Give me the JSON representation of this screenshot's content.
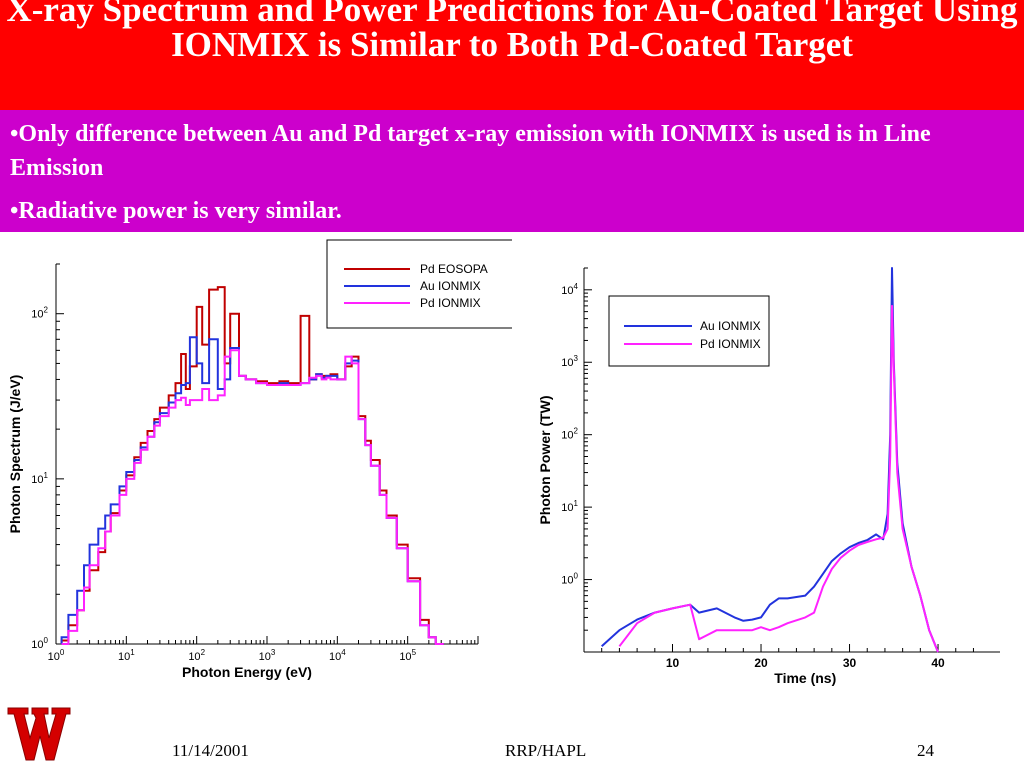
{
  "slide": {
    "title": "X-ray Spectrum and Power Predictions for Au-Coated Target Using IONMIX is Similar to Both Pd-Coated Target",
    "bullets": [
      "•Only difference between Au and Pd target x-ray emission with IONMIX is used is in Line Emission",
      "•Radiative power is very similar."
    ],
    "footer": {
      "date": "11/14/2001",
      "center": "RRP/HAPL",
      "page": "24"
    }
  },
  "colors": {
    "title_band": "#ff0000",
    "bullet_band": "#cc00cc",
    "pd_eosopa": "#c00000",
    "au_ionmix": "#2233dd",
    "pd_ionmix": "#ff22ff"
  },
  "chart_data": [
    {
      "type": "line",
      "xlabel": "Photon Energy (eV)",
      "ylabel": "Photon Spectrum (J/eV)",
      "xscale": "log",
      "yscale": "log",
      "xlim": [
        1,
        1000000
      ],
      "ylim": [
        1,
        200
      ],
      "xticks": [
        "10^0",
        "10^1",
        "10^2",
        "10^3",
        "10^4",
        "10^5"
      ],
      "yticks": [
        "10^0",
        "10^1",
        "10^2"
      ],
      "legend": "top-right",
      "series": [
        {
          "name": "Pd EOSOPA",
          "x": [
            1.2,
            1.5,
            2,
            2.5,
            3,
            4,
            5,
            6,
            8,
            10,
            13,
            16,
            20,
            25,
            30,
            40,
            50,
            60,
            70,
            80,
            100,
            120,
            150,
            200,
            250,
            300,
            400,
            500,
            700,
            1000,
            1500,
            2000,
            3000,
            4000,
            5000,
            6000,
            7000,
            8000,
            10000,
            13000,
            16000,
            20000,
            25000,
            30000,
            40000,
            50000,
            70000,
            100000,
            150000,
            200000,
            250000
          ],
          "y": [
            1.05,
            1.3,
            1.6,
            2.1,
            2.8,
            3.6,
            4.8,
            6.2,
            8.5,
            10.5,
            13.5,
            16.5,
            19.5,
            23,
            27,
            32,
            38,
            57,
            35,
            48,
            110,
            65,
            140,
            145,
            50,
            100,
            42,
            40,
            39,
            38,
            39,
            38,
            97,
            40,
            43,
            42,
            42,
            43,
            40,
            48,
            55,
            24,
            17,
            13,
            8.5,
            6,
            4,
            2.5,
            1.4,
            1.1,
            1.0
          ]
        },
        {
          "name": "Au IONMIX",
          "x": [
            1.2,
            1.5,
            2,
            2.5,
            3,
            4,
            5,
            6,
            8,
            10,
            13,
            16,
            20,
            25,
            30,
            40,
            50,
            60,
            70,
            80,
            100,
            120,
            150,
            200,
            250,
            300,
            400,
            500,
            700,
            1000,
            1500,
            2000,
            3000,
            4000,
            5000,
            6000,
            7000,
            8000,
            10000,
            13000,
            16000,
            20000,
            25000,
            30000,
            40000,
            50000,
            70000,
            100000,
            150000,
            200000,
            250000
          ],
          "y": [
            1.1,
            1.5,
            2.1,
            3.0,
            4.0,
            5.0,
            6.0,
            7.0,
            9.0,
            11,
            13,
            15.5,
            18,
            22,
            25,
            29,
            33,
            37,
            38,
            72,
            50,
            38,
            70,
            35,
            40,
            62,
            42,
            40,
            38,
            37,
            38,
            37,
            38,
            40,
            43,
            41,
            42,
            42,
            40,
            50,
            52,
            23,
            16,
            12,
            8,
            5.8,
            3.8,
            2.4,
            1.3,
            1.1,
            1.0
          ]
        },
        {
          "name": "Pd IONMIX",
          "x": [
            1.2,
            1.5,
            2,
            2.5,
            3,
            4,
            5,
            6,
            8,
            10,
            13,
            16,
            20,
            25,
            30,
            40,
            50,
            60,
            70,
            80,
            100,
            120,
            150,
            200,
            250,
            300,
            400,
            500,
            700,
            1000,
            1500,
            2000,
            3000,
            4000,
            5000,
            6000,
            7000,
            8000,
            10000,
            13000,
            16000,
            20000,
            25000,
            30000,
            40000,
            50000,
            70000,
            100000,
            150000,
            200000,
            250000
          ],
          "y": [
            1.0,
            1.2,
            1.6,
            2.2,
            3.0,
            3.8,
            4.8,
            6.0,
            8.0,
            10,
            12.5,
            15,
            18,
            21,
            24,
            27,
            30,
            31,
            28,
            30,
            30,
            35,
            30,
            32,
            55,
            60,
            42,
            40,
            38,
            37,
            37,
            37,
            38,
            41,
            42,
            40,
            41,
            40,
            40,
            55,
            50,
            23,
            16,
            12,
            8,
            5.8,
            3.8,
            2.4,
            1.3,
            1.1,
            1.0
          ]
        }
      ]
    },
    {
      "type": "line",
      "xlabel": "Time (ns)",
      "ylabel": "Photon Power (TW)",
      "yscale": "log",
      "xlim": [
        0,
        47
      ],
      "ylim": [
        0.1,
        20000
      ],
      "xticks": [
        "10",
        "20",
        "30",
        "40"
      ],
      "yticks": [
        "10^0",
        "10^1",
        "10^2",
        "10^3",
        "10^4"
      ],
      "legend": "top-right",
      "series": [
        {
          "name": "Au IONMIX",
          "x": [
            2,
            4,
            6,
            8,
            10,
            12,
            13,
            15,
            17,
            18,
            19,
            20,
            21,
            22,
            23,
            25,
            26,
            27,
            28,
            29,
            30,
            31,
            32,
            33,
            33.8,
            34.3,
            34.6,
            34.8,
            35.0,
            35.4,
            36,
            37,
            38,
            39,
            40
          ],
          "x_alt": null,
          "y": [
            0.12,
            0.2,
            0.28,
            0.35,
            0.4,
            0.45,
            0.35,
            0.4,
            0.3,
            0.27,
            0.28,
            0.3,
            0.45,
            0.55,
            0.55,
            0.6,
            0.8,
            1.2,
            1.8,
            2.3,
            2.8,
            3.2,
            3.5,
            4.2,
            3.6,
            8,
            100,
            20000,
            1000,
            40,
            6,
            1.5,
            0.6,
            0.2,
            0.1
          ]
        },
        {
          "name": "Pd IONMIX",
          "x": [
            4,
            6,
            8,
            10,
            12,
            13,
            15,
            17,
            18,
            19,
            20,
            21,
            22,
            23,
            25,
            26,
            27,
            28,
            29,
            30,
            31,
            32,
            33,
            33.8,
            34.3,
            34.6,
            34.8,
            35.0,
            35.4,
            36,
            37,
            38,
            39,
            40
          ],
          "y": [
            0.12,
            0.25,
            0.35,
            0.4,
            0.45,
            0.15,
            0.2,
            0.2,
            0.2,
            0.2,
            0.22,
            0.2,
            0.22,
            0.25,
            0.3,
            0.35,
            0.8,
            1.4,
            2.0,
            2.5,
            3.0,
            3.3,
            3.6,
            3.8,
            5,
            50,
            6000,
            800,
            30,
            5,
            1.5,
            0.6,
            0.2,
            0.1
          ]
        }
      ]
    }
  ]
}
